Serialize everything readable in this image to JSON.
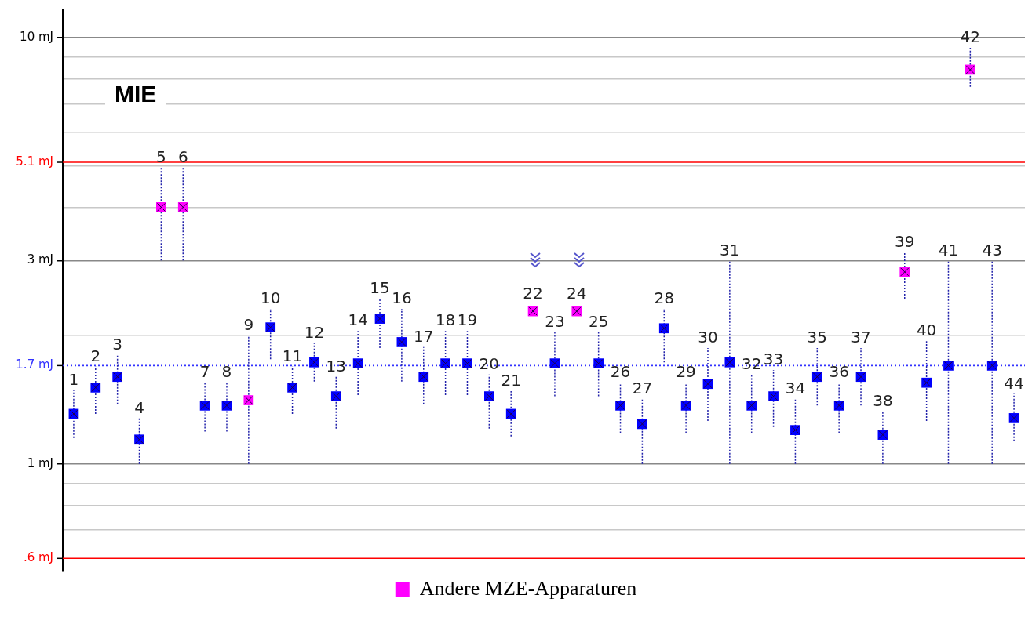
{
  "chart_data": {
    "type": "scatter",
    "title": "MIE",
    "categories": [
      "1",
      "2",
      "3",
      "4",
      "5",
      "6",
      "7",
      "8",
      "9",
      "10",
      "11",
      "12",
      "13",
      "14",
      "15",
      "16",
      "17",
      "18",
      "19",
      "20",
      "21",
      "22",
      "23",
      "24",
      "25",
      "26",
      "27",
      "28",
      "29",
      "30",
      "31",
      "32",
      "33",
      "34",
      "35",
      "36",
      "37",
      "38",
      "39",
      "40",
      "41",
      "42",
      "43",
      "44"
    ],
    "ylim": [
      0.559,
      11.6
    ],
    "log": "y",
    "grid": "y",
    "legend": "bottom",
    "marker": "square",
    "yticks": [
      {
        "value": 0.7,
        "label": null
      },
      {
        "value": 0.8,
        "label": null
      },
      {
        "value": 0.9,
        "label": null
      },
      {
        "value": 1,
        "label": "1 mJ"
      },
      {
        "value": 2,
        "label": null
      },
      {
        "value": 3,
        "label": "3 mJ"
      },
      {
        "value": 4,
        "label": null
      },
      {
        "value": 5,
        "label": null
      },
      {
        "value": 6,
        "label": null
      },
      {
        "value": 7,
        "label": null
      },
      {
        "value": 8,
        "label": null
      },
      {
        "value": 9,
        "label": null
      },
      {
        "value": 10,
        "label": "10 mJ"
      }
    ],
    "ref_lines": [
      {
        "axis": "y",
        "value": 5.1,
        "label": "5.1 mJ",
        "color": "#ff0000",
        "line_style": "solid"
      },
      {
        "axis": "y",
        "value": 0.6,
        "label": ".6 mJ",
        "color": "#ff0000",
        "line_style": "solid"
      },
      {
        "axis": "y",
        "value": 1.7,
        "label": "1.7 mJ",
        "color": "#3333ff",
        "line_style": "dotted"
      }
    ],
    "series": [
      {
        "color": "#0000ff",
        "values": [
          1.31,
          1.51,
          1.6,
          1.14,
          null,
          null,
          1.37,
          1.37,
          null,
          2.09,
          1.51,
          1.73,
          1.44,
          1.72,
          2.19,
          1.93,
          1.6,
          1.72,
          1.72,
          1.44,
          1.31,
          null,
          1.72,
          null,
          1.72,
          1.37,
          1.24,
          2.08,
          1.37,
          1.54,
          1.73,
          1.37,
          1.44,
          1.2,
          1.6,
          1.37,
          1.6,
          1.17,
          null,
          1.55,
          1.7,
          null,
          1.7,
          1.28
        ],
        "errors": [
          [
            1.15,
            1.49
          ],
          [
            1.31,
            1.69
          ],
          [
            1.38,
            1.8
          ],
          [
            1.0,
            1.28
          ],
          null,
          null,
          [
            1.19,
            1.55
          ],
          [
            1.19,
            1.55
          ],
          null,
          [
            1.76,
            2.31
          ],
          [
            1.31,
            1.69
          ],
          [
            1.56,
            1.92
          ],
          [
            1.21,
            1.6
          ],
          [
            1.45,
            2.05
          ],
          [
            1.87,
            2.44
          ],
          [
            1.56,
            2.31
          ],
          [
            1.38,
            1.88
          ],
          [
            1.45,
            2.05
          ],
          [
            1.45,
            2.05
          ],
          [
            1.21,
            1.62
          ],
          [
            1.16,
            1.48
          ],
          null,
          [
            1.44,
            2.04
          ],
          null,
          [
            1.44,
            2.04
          ],
          [
            1.18,
            1.55
          ],
          [
            1.0,
            1.42
          ],
          [
            1.73,
            2.31
          ],
          [
            1.18,
            1.55
          ],
          [
            1.26,
            1.87
          ],
          [
            1.0,
            3.0
          ],
          [
            1.18,
            1.62
          ],
          [
            1.22,
            1.66
          ],
          [
            1.0,
            1.42
          ],
          [
            1.37,
            1.87
          ],
          [
            1.18,
            1.55
          ],
          [
            1.37,
            1.87
          ],
          [
            1.0,
            1.33
          ],
          null,
          [
            1.26,
            1.94
          ],
          [
            1.0,
            3.0
          ],
          null,
          [
            1.0,
            3.0
          ],
          [
            1.13,
            1.46
          ]
        ]
      },
      {
        "name": "Andere MZE-Apparaturen",
        "color": "#ff00ff",
        "values": [
          null,
          null,
          null,
          null,
          4.0,
          4.0,
          null,
          null,
          1.41,
          null,
          null,
          null,
          null,
          null,
          null,
          null,
          null,
          null,
          null,
          null,
          null,
          2.28,
          null,
          2.28,
          null,
          null,
          null,
          null,
          null,
          null,
          null,
          null,
          null,
          null,
          null,
          null,
          null,
          null,
          2.82,
          null,
          null,
          8.41,
          null,
          null
        ],
        "errors": [
          null,
          null,
          null,
          null,
          [
            3.0,
            4.95
          ],
          [
            3.0,
            4.95
          ],
          null,
          null,
          [
            1.0,
            2.0
          ],
          null,
          null,
          null,
          null,
          null,
          null,
          null,
          null,
          null,
          null,
          null,
          null,
          null,
          null,
          null,
          null,
          null,
          null,
          null,
          null,
          null,
          null,
          null,
          null,
          null,
          null,
          null,
          null,
          null,
          [
            2.44,
            3.14
          ],
          null,
          null,
          [
            7.67,
            9.47
          ],
          null,
          null
        ]
      }
    ]
  }
}
